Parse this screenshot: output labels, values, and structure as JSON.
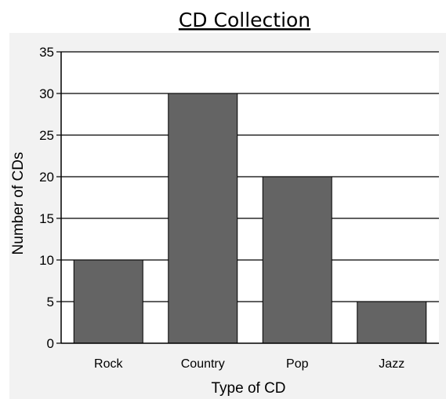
{
  "chart_data": {
    "type": "bar",
    "title": "CD Collection",
    "xlabel": "Type of CD",
    "ylabel": "Number of CDs",
    "categories": [
      "Rock",
      "Country",
      "Pop",
      "Jazz"
    ],
    "values": [
      10,
      30,
      20,
      5
    ],
    "ylim": [
      0,
      35
    ],
    "yticks": [
      "0",
      "5",
      "10",
      "15",
      "20",
      "25",
      "30",
      "35"
    ],
    "grid": true,
    "bar_color": "#646464",
    "panel_color": "#f2f2f2"
  }
}
